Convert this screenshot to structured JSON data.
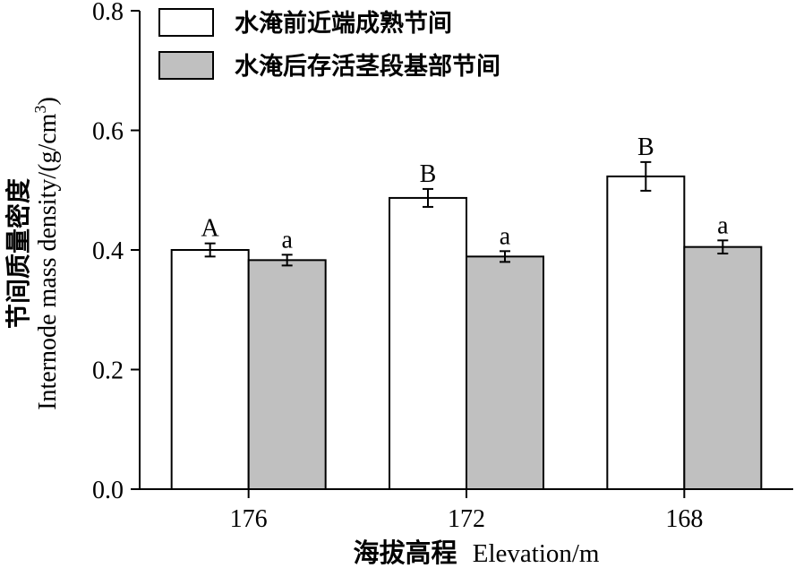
{
  "chart_data": {
    "type": "bar",
    "title": "",
    "xlabel": "海拔高程 Elevation/m",
    "xlabel_cn": "海拔高程",
    "xlabel_en": "Elevation/m",
    "ylabel_cn": "节间质量密度",
    "ylabel_en": "Internode mass density/(g/cm",
    "ylabel_sup": "3",
    "ylabel_close": ")",
    "categories": [
      "176",
      "172",
      "168"
    ],
    "ylim": [
      0,
      0.8
    ],
    "yticks": [
      "0.0",
      "0.2",
      "0.4",
      "0.6",
      "0.8"
    ],
    "grid": false,
    "legend_position": "top-left",
    "series": [
      {
        "name": "水淹前近端成熟节间",
        "color": "#ffffff",
        "values": [
          0.4,
          0.487,
          0.523
        ],
        "errors": [
          0.011,
          0.015,
          0.024
        ],
        "labels": [
          "A",
          "B",
          "B"
        ]
      },
      {
        "name": "水淹后存活茎段基部节间",
        "color": "#c0c0c0",
        "values": [
          0.383,
          0.389,
          0.405
        ],
        "errors": [
          0.009,
          0.009,
          0.011
        ],
        "labels": [
          "a",
          "a",
          "a"
        ]
      }
    ]
  }
}
